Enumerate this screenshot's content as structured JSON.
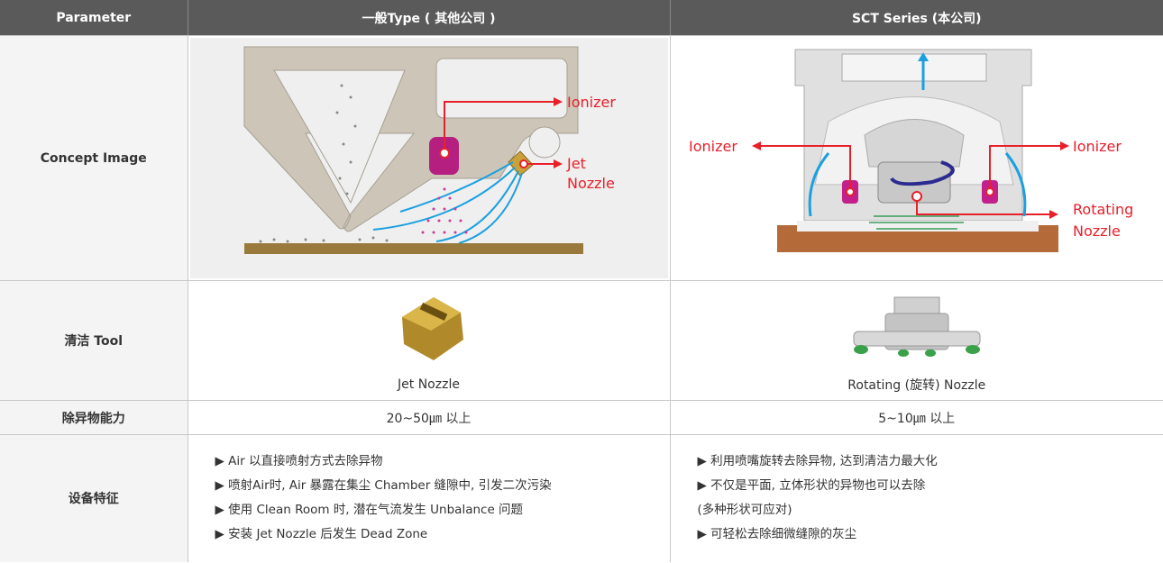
{
  "table": {
    "header": [
      "Parameter",
      "一般Type ( 其他公司 )",
      "SCT Series (本公司)"
    ],
    "concept": {
      "label": "Concept Image",
      "left": {
        "ionizer": "Ionizer",
        "nozzle": [
          "Jet",
          "Nozzle"
        ]
      },
      "right": {
        "ionizer_left": "Ionizer",
        "ionizer_right": "Ionizer",
        "nozzle": [
          "Rotating",
          "Nozzle"
        ]
      }
    },
    "tool": {
      "label": "清洁 Tool",
      "left": "Jet Nozzle",
      "right": "Rotating (旋转) Nozzle"
    },
    "capability": {
      "label": "除异物能力",
      "left": "20~50㎛ 以上",
      "right": "5~10㎛ 以上"
    },
    "features": {
      "label": "设备特征",
      "left": [
        "▶ Air 以直接喷射方式去除异物",
        "▶ 喷射Air时, Air 暴露在集尘 Chamber 缝隙中, 引发二次污染",
        "▶ 使用 Clean Room 时, 潜在气流发生 Unbalance 问题",
        "▶ 安装 Jet Nozzle 后发生 Dead Zone"
      ],
      "right": [
        "▶ 利用喷嘴旋转去除异物, 达到清洁力最大化",
        "▶ 不仅是平面, 立体形状的异物也可以去除",
        "(多种形状可应对)",
        "▶ 可轻松去除细微缝隙的灰尘"
      ]
    }
  }
}
